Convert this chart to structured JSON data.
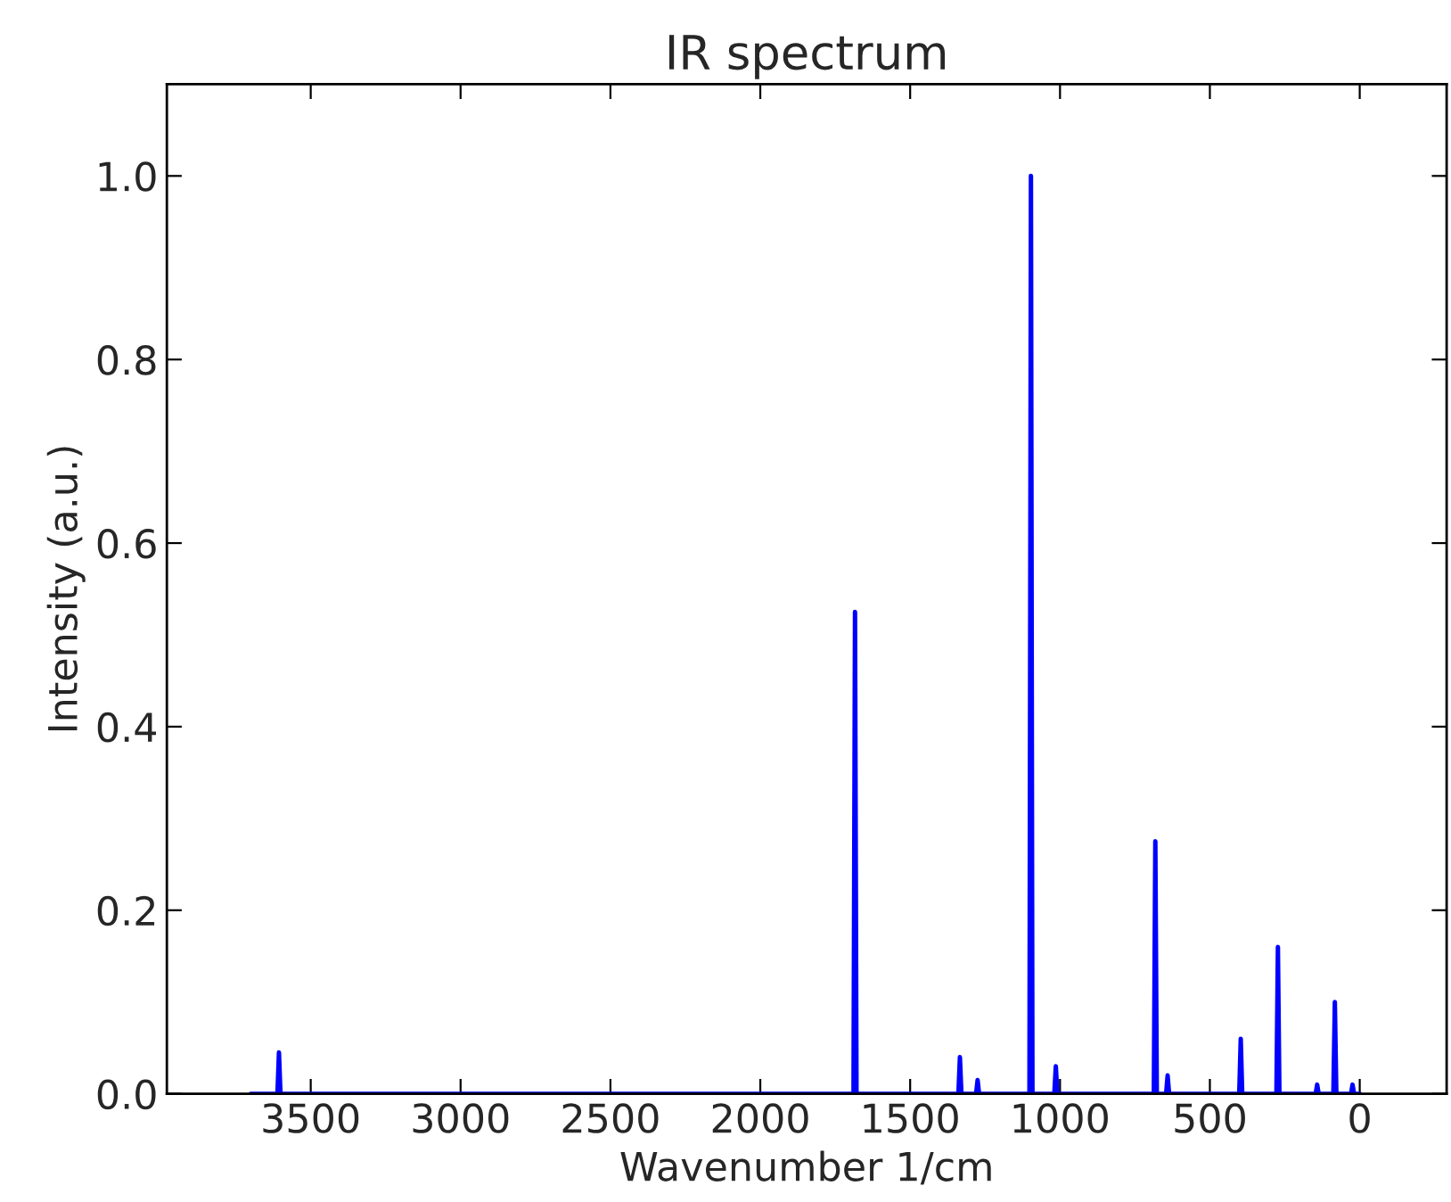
{
  "chart_data": {
    "type": "line",
    "title": "IR spectrum",
    "xlabel": "Wavenumber 1/cm",
    "ylabel": "Intensity (a.u.)",
    "series": [
      {
        "color": "#0000ff",
        "x": [
          3700,
          3611,
          3606,
          3601,
          1689,
          1684,
          1679,
          1339,
          1334,
          1329,
          1280,
          1275,
          1270,
          1102,
          1097,
          1092,
          1019,
          1014,
          1009,
          687,
          682,
          677,
          646,
          641,
          636,
          402,
          397,
          392,
          278,
          273,
          268,
          147,
          142,
          137,
          88,
          83,
          78,
          29,
          24,
          19,
          0
        ],
        "values": [
          0,
          0,
          0.045,
          0,
          0,
          0.525,
          0,
          0,
          0.04,
          0,
          0,
          0.015,
          0,
          0,
          1.0,
          0,
          0,
          0.03,
          0,
          0,
          0.275,
          0,
          0,
          0.02,
          0,
          0,
          0.06,
          0,
          0,
          0.16,
          0,
          0,
          0.01,
          0,
          0,
          0.1,
          0,
          0,
          0.01,
          0,
          0
        ]
      }
    ],
    "xlim": [
      3980,
      -290
    ],
    "xticks": [
      3500,
      3000,
      2500,
      2000,
      1500,
      1000,
      500,
      0
    ],
    "ylim": [
      0,
      1.1
    ],
    "yticks": [
      {
        "value": 0,
        "label": "0.0"
      },
      {
        "value": 0.2,
        "label": "0.2"
      },
      {
        "value": 0.4,
        "label": "0.4"
      },
      {
        "value": 0.6,
        "label": "0.6"
      },
      {
        "value": 0.8,
        "label": "0.8"
      },
      {
        "value": 1.0,
        "label": "1.0"
      }
    ],
    "grid": false,
    "legend": false
  }
}
